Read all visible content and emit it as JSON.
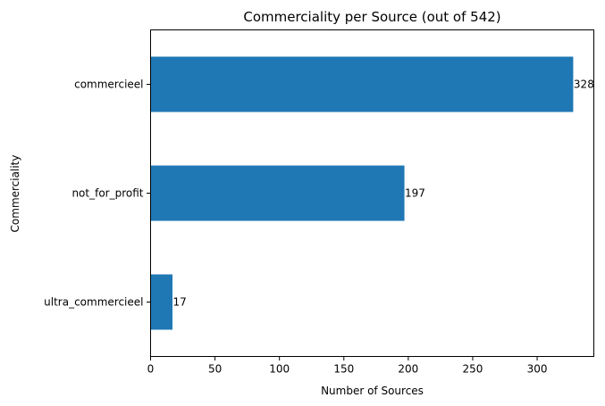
{
  "chart_data": {
    "type": "bar",
    "orientation": "horizontal",
    "title": "Commerciality per Source (out of 542)",
    "xlabel": "Number of Sources",
    "ylabel": "Commerciality",
    "categories": [
      "commercieel",
      "not_for_profit",
      "ultra_commercieel"
    ],
    "values": [
      328,
      197,
      17
    ],
    "data_labels": [
      "328",
      "197",
      "17"
    ],
    "xlim": [
      0,
      344
    ],
    "xticks": [
      0,
      50,
      100,
      150,
      200,
      250,
      300
    ],
    "xtick_labels": [
      "0",
      "50",
      "100",
      "150",
      "200",
      "250",
      "300"
    ],
    "grid": false,
    "legend": "none",
    "bar_color": "#1f77b4"
  }
}
